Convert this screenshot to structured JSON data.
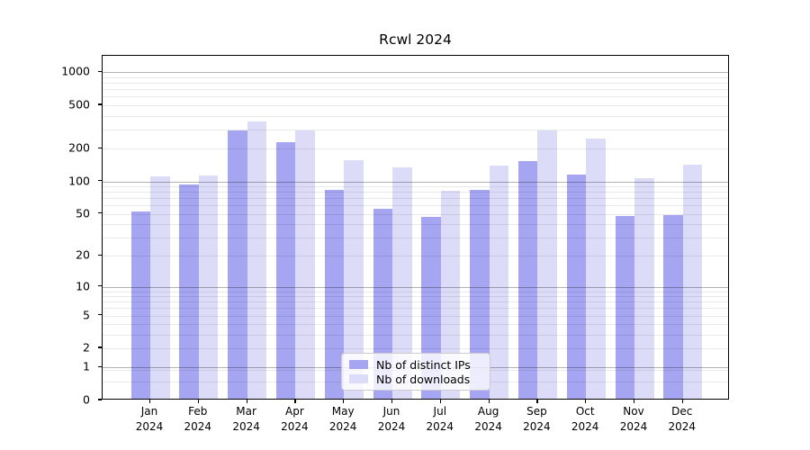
{
  "chart_data": {
    "type": "bar",
    "title": "Rcwl 2024",
    "categories": [
      "Jan",
      "Feb",
      "Mar",
      "Apr",
      "May",
      "Jun",
      "Jul",
      "Aug",
      "Sep",
      "Oct",
      "Nov",
      "Dec"
    ],
    "category_second_line": "2024",
    "series": [
      {
        "name": "Nb of distinct IPs",
        "color": "#a5a5f2",
        "values": [
          51,
          90,
          285,
          222,
          80,
          54,
          45,
          81,
          148,
          111,
          46,
          47
        ]
      },
      {
        "name": "Nb of downloads",
        "color": "#dcdcf9",
        "values": [
          107,
          110,
          343,
          283,
          151,
          129,
          79,
          135,
          283,
          239,
          103,
          136
        ]
      }
    ],
    "xlabel": "",
    "ylabel": "",
    "yscale": "log1p",
    "ylim": [
      0,
      1420
    ],
    "y_ticks": [
      0,
      1,
      2,
      5,
      10,
      20,
      50,
      100,
      200,
      500,
      1000
    ],
    "grid_major": [
      1,
      10,
      100,
      1000
    ],
    "grid_minor_base": [
      1,
      10,
      100
    ],
    "grid_minor_sub1": [
      0.5,
      0.9
    ],
    "legend_position": "lower center",
    "grid": "horizontal"
  }
}
